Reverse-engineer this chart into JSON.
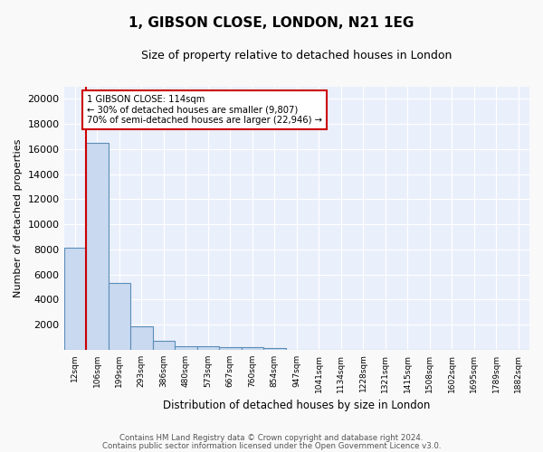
{
  "title": "1, GIBSON CLOSE, LONDON, N21 1EG",
  "subtitle": "Size of property relative to detached houses in London",
  "xlabel": "Distribution of detached houses by size in London",
  "ylabel": "Number of detached properties",
  "bin_labels": [
    "12sqm",
    "106sqm",
    "199sqm",
    "293sqm",
    "386sqm",
    "480sqm",
    "573sqm",
    "667sqm",
    "760sqm",
    "854sqm",
    "947sqm",
    "1041sqm",
    "1134sqm",
    "1228sqm",
    "1321sqm",
    "1415sqm",
    "1508sqm",
    "1602sqm",
    "1695sqm",
    "1789sqm",
    "1882sqm"
  ],
  "bar_heights": [
    8100,
    16500,
    5300,
    1850,
    700,
    300,
    230,
    200,
    170,
    150,
    0,
    0,
    0,
    0,
    0,
    0,
    0,
    0,
    0,
    0,
    0
  ],
  "bar_color": "#c9d9f0",
  "bar_edge_color": "#5b8db8",
  "red_line_x": 0.5,
  "annotation_line1": "1 GIBSON CLOSE: 114sqm",
  "annotation_line2": "← 30% of detached houses are smaller (9,807)",
  "annotation_line3": "70% of semi-detached houses are larger (22,946) →",
  "annotation_box_color": "#ffffff",
  "annotation_box_edge_color": "#cc0000",
  "ylim": [
    0,
    21000
  ],
  "yticks": [
    0,
    2000,
    4000,
    6000,
    8000,
    10000,
    12000,
    14000,
    16000,
    18000,
    20000
  ],
  "background_color": "#eaf0fb",
  "grid_color": "#ffffff",
  "fig_bg_color": "#f9f9f9",
  "footer_line1": "Contains HM Land Registry data © Crown copyright and database right 2024.",
  "footer_line2": "Contains public sector information licensed under the Open Government Licence v3.0."
}
